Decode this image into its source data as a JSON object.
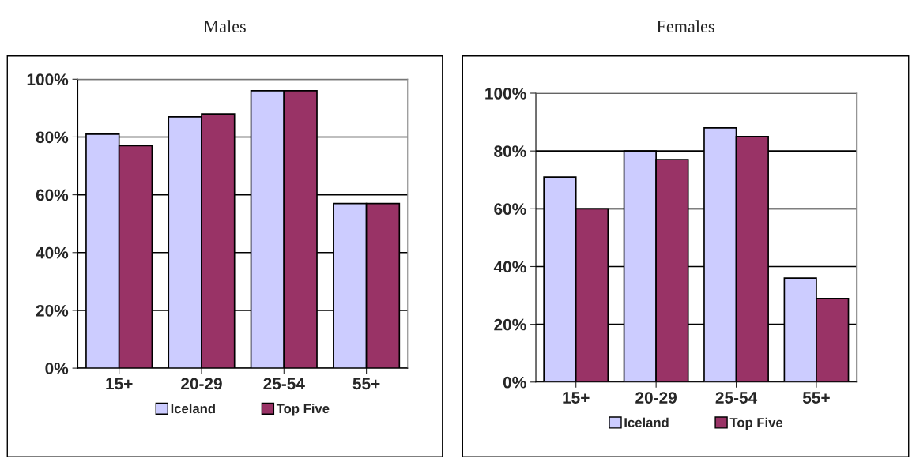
{
  "chart_data": [
    {
      "type": "bar",
      "title": "Males",
      "categories": [
        "15+",
        "20-29",
        "25-54",
        "55+"
      ],
      "series": [
        {
          "name": "Iceland",
          "color": "#ccccff",
          "values": [
            81,
            87,
            96,
            57
          ]
        },
        {
          "name": "Top Five",
          "color": "#993366",
          "values": [
            77,
            88,
            96,
            57
          ]
        }
      ],
      "ylim": [
        0,
        100
      ],
      "yticks": [
        {
          "value": 0,
          "label": "0%"
        },
        {
          "value": 20,
          "label": "20%"
        },
        {
          "value": 40,
          "label": "40%"
        },
        {
          "value": 60,
          "label": "60%"
        },
        {
          "value": 80,
          "label": "80%"
        },
        {
          "value": 100,
          "label": "100%"
        }
      ],
      "grid": "y",
      "legend": "bottom"
    },
    {
      "type": "bar",
      "title": "Females",
      "categories": [
        "15+",
        "20-29",
        "25-54",
        "55+"
      ],
      "series": [
        {
          "name": "Iceland",
          "color": "#ccccff",
          "values": [
            71,
            80,
            88,
            36
          ]
        },
        {
          "name": "Top Five",
          "color": "#993366",
          "values": [
            60,
            77,
            85,
            29
          ]
        }
      ],
      "ylim": [
        0,
        100
      ],
      "yticks": [
        {
          "value": 0,
          "label": "0%"
        },
        {
          "value": 20,
          "label": "20%"
        },
        {
          "value": 40,
          "label": "40%"
        },
        {
          "value": 60,
          "label": "60%"
        },
        {
          "value": 80,
          "label": "80%"
        },
        {
          "value": 100,
          "label": "100%"
        }
      ],
      "grid": "y",
      "legend": "bottom"
    }
  ]
}
